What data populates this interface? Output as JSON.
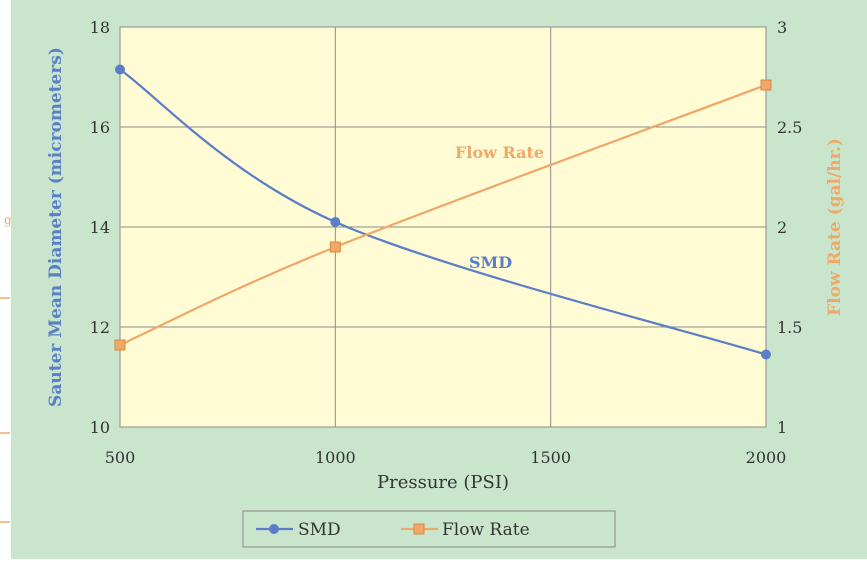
{
  "chart_data": {
    "type": "line",
    "title": "",
    "xlabel": "Pressure (PSI)",
    "ylabel": "Sauter Mean Diameter (micrometers)",
    "y2label": "Flow Rate (gal/hr.)",
    "xlim": [
      500,
      2000
    ],
    "ylim": [
      10,
      18
    ],
    "y2lim": [
      1,
      3
    ],
    "x_ticks": [
      "500",
      "1000",
      "1500",
      "2000"
    ],
    "y_ticks": [
      "10",
      "12",
      "14",
      "16",
      "18"
    ],
    "y2_ticks": [
      "1",
      "1.5",
      "2",
      "2.5",
      "3"
    ],
    "grid": true,
    "legend_position": "bottom",
    "series": [
      {
        "name": "SMD",
        "axis": "left",
        "marker": "circle",
        "color": "#5B7FC6",
        "x": [
          500,
          1000,
          2000
        ],
        "values": [
          17.15,
          14.1,
          11.45
        ],
        "inline_label": "SMD"
      },
      {
        "name": "Flow Rate",
        "axis": "right",
        "marker": "square",
        "color": "#F0A868",
        "x": [
          500,
          1000,
          2000
        ],
        "values": [
          1.41,
          1.9,
          2.71
        ],
        "inline_label": "Flow Rate"
      }
    ],
    "colors": {
      "outer_background": "#C9E6CD",
      "plot_background": "#FFFBD4",
      "grid": "#8C8C8C",
      "axis_text": "#333333"
    }
  }
}
